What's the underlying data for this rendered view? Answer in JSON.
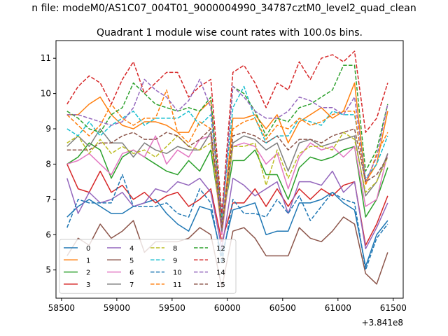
{
  "suptitle": "n file: modeM0/AS1C07_004T01_9000004990_34787cztM0_level2_quad_clean",
  "chart_data": {
    "type": "line",
    "title": "Quadrant 1 module wise count rates with 100.0s bins.",
    "xlabel": "",
    "ylabel": "",
    "x_offset_label": "+3.841e8",
    "xlim": [
      58450,
      61590
    ],
    "ylim": [
      4.2,
      11.5
    ],
    "xticks": [
      58500,
      59000,
      59500,
      60000,
      60500,
      61000,
      61500
    ],
    "yticks": [
      5,
      6,
      7,
      8,
      9,
      10,
      11
    ],
    "grid": false,
    "legend_position": "lower-left",
    "legend_columns": 4,
    "x": [
      58550,
      58650,
      58750,
      58850,
      58950,
      59050,
      59150,
      59250,
      59350,
      59450,
      59550,
      59650,
      59750,
      59850,
      59950,
      60050,
      60150,
      60250,
      60350,
      60450,
      60550,
      60650,
      60750,
      60850,
      60950,
      61050,
      61150,
      61250,
      61350,
      61450
    ],
    "series": [
      {
        "name": "0",
        "color": "#1f77b4",
        "dash": "solid",
        "values": [
          6.5,
          6.8,
          7.0,
          6.8,
          6.6,
          6.6,
          6.8,
          6.9,
          7.0,
          6.6,
          6.3,
          6.1,
          6.8,
          6.7,
          5.4,
          6.7,
          6.8,
          6.9,
          6.0,
          6.1,
          6.1,
          6.9,
          6.9,
          7.0,
          7.2,
          6.9,
          6.7,
          5.1,
          6.0,
          6.4
        ]
      },
      {
        "name": "1",
        "color": "#ff7f0e",
        "dash": "solid",
        "values": [
          9.4,
          9.4,
          9.7,
          9.9,
          9.4,
          9.1,
          9.0,
          9.2,
          9.2,
          9.1,
          8.9,
          8.9,
          9.5,
          9.8,
          6.0,
          9.3,
          9.3,
          9.4,
          9.0,
          9.4,
          8.6,
          9.2,
          9.4,
          9.6,
          9.3,
          9.5,
          10.3,
          7.5,
          8.0,
          9.5
        ]
      },
      {
        "name": "2",
        "color": "#2ca02c",
        "dash": "solid",
        "values": [
          8.0,
          8.2,
          8.6,
          8.4,
          7.6,
          8.2,
          8.4,
          8.2,
          8.0,
          7.8,
          7.7,
          8.1,
          7.8,
          8.4,
          6.3,
          8.1,
          8.1,
          8.4,
          7.7,
          7.7,
          7.0,
          7.9,
          8.2,
          8.1,
          8.2,
          8.4,
          8.5,
          6.5,
          7.0,
          7.9
        ]
      },
      {
        "name": "3",
        "color": "#d62728",
        "dash": "solid",
        "values": [
          8.0,
          7.3,
          7.2,
          7.8,
          7.2,
          7.4,
          7.0,
          7.2,
          6.9,
          7.1,
          7.2,
          6.8,
          7.0,
          7.3,
          5.8,
          6.9,
          6.9,
          7.3,
          6.8,
          7.3,
          6.8,
          7.3,
          7.0,
          7.3,
          7.1,
          7.4,
          7.5,
          5.7,
          6.3,
          7.1
        ]
      },
      {
        "name": "4",
        "color": "#9467bd",
        "dash": "solid",
        "values": [
          7.6,
          6.6,
          7.2,
          6.9,
          7.0,
          7.2,
          6.8,
          6.9,
          7.3,
          7.2,
          7.5,
          7.4,
          7.6,
          7.2,
          5.6,
          7.6,
          7.4,
          7.1,
          7.3,
          7.5,
          6.6,
          7.5,
          7.5,
          7.4,
          7.8,
          7.2,
          7.5,
          5.6,
          6.2,
          6.9
        ]
      },
      {
        "name": "5",
        "color": "#8c564b",
        "dash": "solid",
        "values": [
          5.4,
          5.9,
          5.7,
          6.3,
          5.9,
          6.1,
          6.4,
          5.5,
          5.8,
          5.8,
          5.8,
          5.9,
          6.2,
          6.0,
          4.5,
          6.1,
          6.2,
          5.9,
          5.4,
          5.4,
          5.4,
          6.2,
          5.9,
          5.8,
          6.1,
          6.5,
          6.3,
          4.9,
          4.6,
          5.5
        ]
      },
      {
        "name": "6",
        "color": "#e377c2",
        "dash": "solid",
        "values": [
          8.0,
          8.1,
          8.3,
          8.0,
          7.7,
          8.3,
          8.4,
          8.2,
          8.8,
          8.0,
          8.4,
          8.2,
          8.7,
          8.8,
          6.0,
          8.5,
          8.6,
          8.5,
          8.0,
          8.3,
          7.3,
          8.2,
          8.6,
          8.4,
          8.5,
          8.2,
          8.5,
          6.8,
          7.0,
          8.3
        ]
      },
      {
        "name": "7",
        "color": "#7f7f7f",
        "dash": "solid",
        "values": [
          8.5,
          8.8,
          8.5,
          9.0,
          8.6,
          8.6,
          8.2,
          8.6,
          8.4,
          8.3,
          8.5,
          8.4,
          8.4,
          8.9,
          6.1,
          8.6,
          8.8,
          8.7,
          8.4,
          8.6,
          7.8,
          8.6,
          8.7,
          8.5,
          8.6,
          8.7,
          8.8,
          7.1,
          7.5,
          8.3
        ]
      },
      {
        "name": "8",
        "color": "#bcbd22",
        "dash": "dashed",
        "values": [
          8.6,
          8.8,
          8.3,
          8.7,
          8.3,
          8.5,
          8.3,
          8.4,
          8.2,
          8.5,
          8.8,
          8.5,
          8.4,
          8.6,
          6.2,
          8.5,
          8.5,
          8.6,
          7.4,
          8.4,
          7.6,
          8.3,
          8.5,
          8.5,
          8.4,
          8.9,
          8.7,
          7.2,
          7.5,
          8.2
        ]
      },
      {
        "name": "9",
        "color": "#17becf",
        "dash": "dashed",
        "values": [
          9.0,
          8.8,
          9.2,
          8.8,
          9.1,
          9.3,
          9.5,
          9.1,
          9.3,
          9.3,
          9.3,
          9.5,
          9.1,
          9.4,
          6.5,
          9.6,
          10.2,
          9.3,
          8.6,
          8.8,
          8.8,
          9.3,
          9.2,
          9.1,
          9.5,
          9.4,
          9.4,
          7.6,
          8.0,
          8.8
        ]
      },
      {
        "name": "10",
        "color": "#1f77b4",
        "dash": "dashed",
        "values": [
          6.2,
          7.0,
          6.9,
          6.9,
          6.9,
          7.7,
          6.8,
          6.8,
          6.8,
          6.9,
          6.6,
          6.5,
          7.3,
          6.9,
          5.2,
          7.0,
          6.6,
          6.6,
          6.5,
          7.0,
          6.6,
          7.1,
          6.4,
          6.8,
          7.2,
          7.0,
          6.9,
          5.0,
          5.9,
          6.3
        ]
      },
      {
        "name": "11",
        "color": "#ff7f0e",
        "dash": "dashed",
        "values": [
          9.4,
          9.1,
          8.8,
          9.1,
          9.7,
          9.3,
          9.1,
          9.3,
          9.3,
          10.1,
          8.9,
          8.6,
          9.2,
          9.0,
          6.2,
          9.0,
          9.2,
          9.3,
          8.7,
          9.1,
          9.0,
          9.3,
          9.1,
          9.2,
          9.4,
          9.5,
          9.5,
          7.4,
          8.3,
          8.9
        ]
      },
      {
        "name": "12",
        "color": "#2ca02c",
        "dash": "dashed",
        "values": [
          9.5,
          9.3,
          9.0,
          8.9,
          9.4,
          9.6,
          10.3,
          10.0,
          9.7,
          9.6,
          9.5,
          9.6,
          9.5,
          9.9,
          6.4,
          10.2,
          10.0,
          9.5,
          8.8,
          9.3,
          9.2,
          9.6,
          9.7,
          9.9,
          10.1,
          10.8,
          10.8,
          7.8,
          8.4,
          9.7
        ]
      },
      {
        "name": "13",
        "color": "#d62728",
        "dash": "dashed",
        "values": [
          9.7,
          10.2,
          10.5,
          10.3,
          9.7,
          10.4,
          10.9,
          10.0,
          10.3,
          10.6,
          10.6,
          9.9,
          10.2,
          10.4,
          6.6,
          10.6,
          10.8,
          10.3,
          9.6,
          10.3,
          10.1,
          10.9,
          10.4,
          11.0,
          11.1,
          10.9,
          11.2,
          8.9,
          9.3,
          10.3
        ]
      },
      {
        "name": "14",
        "color": "#9467bd",
        "dash": "dashed",
        "values": [
          9.4,
          9.4,
          9.3,
          9.2,
          9.1,
          9.2,
          9.6,
          10.4,
          10.1,
          9.9,
          9.5,
          9.8,
          10.4,
          9.6,
          6.3,
          10.2,
          9.9,
          9.5,
          9.3,
          9.3,
          9.5,
          9.9,
          9.8,
          9.6,
          9.6,
          9.4,
          9.9,
          7.5,
          8.2,
          9.7
        ]
      },
      {
        "name": "15",
        "color": "#8c564b",
        "dash": "dashed",
        "values": [
          8.4,
          8.4,
          8.4,
          8.6,
          8.6,
          8.8,
          8.9,
          8.7,
          8.7,
          8.9,
          8.8,
          8.5,
          8.7,
          9.0,
          6.2,
          8.8,
          8.9,
          8.8,
          8.6,
          8.8,
          8.4,
          8.7,
          8.7,
          8.6,
          8.8,
          8.9,
          9.0,
          7.5,
          7.7,
          8.2
        ]
      }
    ]
  }
}
